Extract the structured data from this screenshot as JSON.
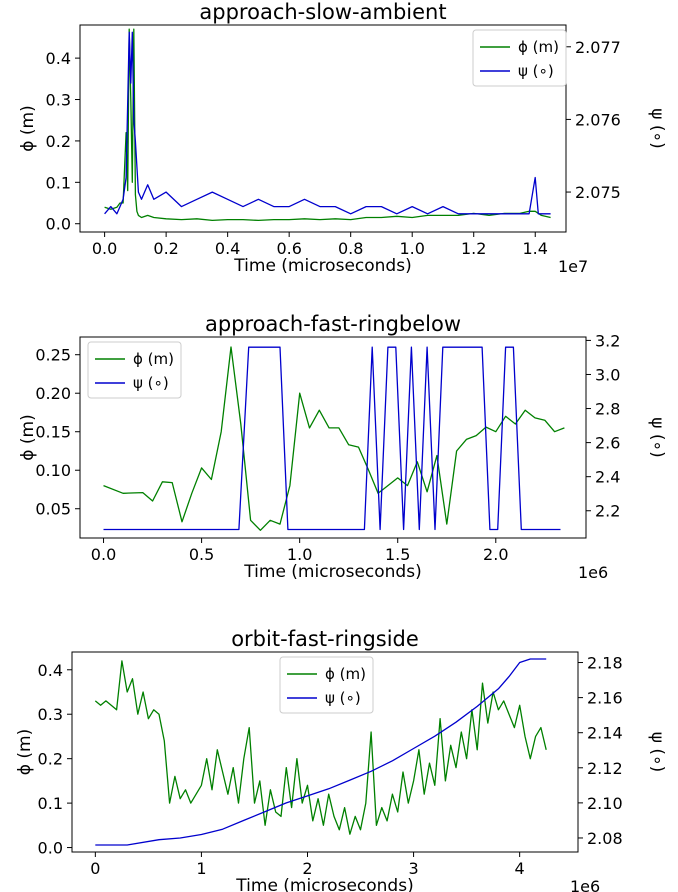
{
  "colors": {
    "phi": "#008000",
    "psi": "#0000cd"
  },
  "chart_data": [
    {
      "type": "line",
      "title": "approach-slow-ambient",
      "xlabel": "Time (microseconds)",
      "ylabel": "ϕ (m)",
      "y2label": "ψ (∘)",
      "x_offset_text": "1e7",
      "xlim": [
        -0.08,
        1.5
      ],
      "ylim": [
        -0.02,
        0.48
      ],
      "y2lim": [
        2.07445,
        2.0773
      ],
      "x_ticks": [
        0.0,
        0.2,
        0.4,
        0.6,
        0.8,
        1.0,
        1.2,
        1.4
      ],
      "x_ticklabels": [
        "0.0",
        "0.2",
        "0.4",
        "0.6",
        "0.8",
        "1.0",
        "1.2",
        "1.4"
      ],
      "y_ticks": [
        0.0,
        0.1,
        0.2,
        0.3,
        0.4
      ],
      "y_ticklabels": [
        "0.0",
        "0.1",
        "0.2",
        "0.3",
        "0.4"
      ],
      "y2_ticks": [
        2.075,
        2.076,
        2.077
      ],
      "y2_ticklabels": [
        "2.075",
        "2.076",
        "2.077"
      ],
      "legend": [
        "ϕ (m)",
        "ψ (∘)"
      ],
      "legend_loc": "upper-right",
      "series": [
        {
          "name": "ϕ (m)",
          "axis": "left",
          "x": [
            0.0,
            0.02,
            0.04,
            0.05,
            0.06,
            0.07,
            0.075,
            0.08,
            0.085,
            0.09,
            0.095,
            0.1,
            0.105,
            0.11,
            0.12,
            0.14,
            0.16,
            0.2,
            0.25,
            0.3,
            0.35,
            0.4,
            0.45,
            0.5,
            0.55,
            0.6,
            0.65,
            0.7,
            0.75,
            0.8,
            0.85,
            0.9,
            0.95,
            1.0,
            1.05,
            1.1,
            1.15,
            1.2,
            1.25,
            1.3,
            1.35,
            1.38,
            1.4,
            1.42,
            1.45
          ],
          "y": [
            0.04,
            0.035,
            0.04,
            0.05,
            0.05,
            0.22,
            0.08,
            0.47,
            0.3,
            0.1,
            0.47,
            0.07,
            0.03,
            0.02,
            0.015,
            0.02,
            0.015,
            0.012,
            0.01,
            0.012,
            0.008,
            0.01,
            0.01,
            0.008,
            0.01,
            0.01,
            0.012,
            0.01,
            0.012,
            0.01,
            0.015,
            0.015,
            0.018,
            0.015,
            0.02,
            0.02,
            0.02,
            0.025,
            0.02,
            0.025,
            0.025,
            0.03,
            0.03,
            0.02,
            0.015
          ]
        },
        {
          "name": "ψ (∘)",
          "axis": "right",
          "x": [
            0.0,
            0.02,
            0.04,
            0.05,
            0.06,
            0.07,
            0.08,
            0.085,
            0.09,
            0.095,
            0.1,
            0.11,
            0.12,
            0.14,
            0.16,
            0.2,
            0.25,
            0.3,
            0.35,
            0.4,
            0.45,
            0.5,
            0.55,
            0.6,
            0.65,
            0.7,
            0.75,
            0.8,
            0.85,
            0.9,
            0.95,
            1.0,
            1.05,
            1.1,
            1.15,
            1.2,
            1.25,
            1.3,
            1.35,
            1.38,
            1.4,
            1.41,
            1.42,
            1.45
          ],
          "y": [
            2.0747,
            2.0748,
            2.0747,
            2.0748,
            2.0749,
            2.0752,
            2.0772,
            2.0765,
            2.0772,
            2.076,
            2.0757,
            2.075,
            2.0749,
            2.0751,
            2.0749,
            2.075,
            2.0748,
            2.0749,
            2.075,
            2.0749,
            2.0748,
            2.0749,
            2.0748,
            2.0748,
            2.0749,
            2.0748,
            2.0748,
            2.0747,
            2.0748,
            2.0748,
            2.0747,
            2.0748,
            2.0747,
            2.0748,
            2.0747,
            2.0747,
            2.0747,
            2.0747,
            2.0747,
            2.0747,
            2.0752,
            2.0747,
            2.0747,
            2.0747
          ]
        }
      ]
    },
    {
      "type": "line",
      "title": "approach-fast-ringbelow",
      "xlabel": "Time (microseconds)",
      "ylabel": "ϕ (m)",
      "y2label": "ψ (∘)",
      "x_offset_text": "1e6",
      "xlim": [
        -0.12,
        2.46
      ],
      "ylim": [
        0.012,
        0.273
      ],
      "y2lim": [
        2.04,
        3.22
      ],
      "x_ticks": [
        0.0,
        0.5,
        1.0,
        1.5,
        2.0
      ],
      "x_ticklabels": [
        "0.0",
        "0.5",
        "1.0",
        "1.5",
        "2.0"
      ],
      "y_ticks": [
        0.05,
        0.1,
        0.15,
        0.2,
        0.25
      ],
      "y_ticklabels": [
        "0.05",
        "0.10",
        "0.15",
        "0.20",
        "0.25"
      ],
      "y2_ticks": [
        2.2,
        2.4,
        2.6,
        2.8,
        3.0,
        3.2
      ],
      "y2_ticklabels": [
        "2.2",
        "2.4",
        "2.6",
        "2.8",
        "3.0",
        "3.2"
      ],
      "legend": [
        "ϕ (m)",
        "ψ (∘)"
      ],
      "legend_loc": "upper-left",
      "series": [
        {
          "name": "ϕ (m)",
          "axis": "left",
          "x": [
            0.0,
            0.1,
            0.2,
            0.25,
            0.3,
            0.35,
            0.4,
            0.45,
            0.5,
            0.55,
            0.6,
            0.65,
            0.7,
            0.75,
            0.8,
            0.85,
            0.9,
            0.95,
            1.0,
            1.05,
            1.1,
            1.15,
            1.2,
            1.25,
            1.3,
            1.35,
            1.4,
            1.45,
            1.5,
            1.55,
            1.6,
            1.65,
            1.7,
            1.75,
            1.8,
            1.85,
            1.9,
            1.95,
            2.0,
            2.05,
            2.1,
            2.15,
            2.2,
            2.25,
            2.3,
            2.35
          ],
          "y": [
            0.08,
            0.07,
            0.071,
            0.06,
            0.085,
            0.084,
            0.033,
            0.07,
            0.103,
            0.088,
            0.15,
            0.26,
            0.16,
            0.035,
            0.022,
            0.035,
            0.03,
            0.08,
            0.2,
            0.155,
            0.178,
            0.155,
            0.155,
            0.133,
            0.13,
            0.101,
            0.07,
            0.08,
            0.09,
            0.08,
            0.111,
            0.072,
            0.119,
            0.03,
            0.125,
            0.14,
            0.145,
            0.156,
            0.15,
            0.17,
            0.16,
            0.178,
            0.168,
            0.165,
            0.15,
            0.155
          ]
        },
        {
          "name": "ψ (∘)",
          "axis": "right",
          "x": [
            0.0,
            0.69,
            0.74,
            0.9,
            0.94,
            1.33,
            1.37,
            1.41,
            1.45,
            1.49,
            1.53,
            1.57,
            1.61,
            1.65,
            1.69,
            1.73,
            1.77,
            1.85,
            1.93,
            1.97,
            2.01,
            2.05,
            2.09,
            2.13,
            2.17,
            2.21,
            2.33
          ],
          "y": [
            2.09,
            2.09,
            3.16,
            3.16,
            2.09,
            2.09,
            3.16,
            2.09,
            3.16,
            3.16,
            2.09,
            3.16,
            2.09,
            3.16,
            2.09,
            3.16,
            3.16,
            3.16,
            3.16,
            2.09,
            2.09,
            3.16,
            3.16,
            2.09,
            2.09,
            2.09,
            2.09
          ]
        }
      ]
    },
    {
      "type": "line",
      "title": "orbit-fast-ringside",
      "xlabel": "Time (microseconds)",
      "ylabel": "ϕ (m)",
      "y2label": "ψ (∘)",
      "x_offset_text": "1e6",
      "xlim": [
        -0.22,
        4.55
      ],
      "ylim": [
        -0.01,
        0.44
      ],
      "y2lim": [
        2.072,
        2.186
      ],
      "x_ticks": [
        0,
        1,
        2,
        3,
        4
      ],
      "x_ticklabels": [
        "0",
        "1",
        "2",
        "3",
        "4"
      ],
      "y_ticks": [
        0.0,
        0.1,
        0.2,
        0.3,
        0.4
      ],
      "y_ticklabels": [
        "0.0",
        "0.1",
        "0.2",
        "0.3",
        "0.4"
      ],
      "y2_ticks": [
        2.08,
        2.1,
        2.12,
        2.14,
        2.16,
        2.18
      ],
      "y2_ticklabels": [
        "2.08",
        "2.10",
        "2.12",
        "2.14",
        "2.16",
        "2.18"
      ],
      "legend": [
        "ϕ (m)",
        "ψ (∘)"
      ],
      "legend_loc": "upper-center",
      "series": [
        {
          "name": "ϕ (m)",
          "axis": "left",
          "x": [
            0.0,
            0.05,
            0.1,
            0.15,
            0.2,
            0.25,
            0.3,
            0.35,
            0.4,
            0.45,
            0.5,
            0.55,
            0.6,
            0.65,
            0.7,
            0.75,
            0.8,
            0.85,
            0.9,
            0.95,
            1.0,
            1.05,
            1.1,
            1.15,
            1.2,
            1.25,
            1.3,
            1.35,
            1.4,
            1.45,
            1.5,
            1.55,
            1.6,
            1.65,
            1.7,
            1.75,
            1.8,
            1.85,
            1.9,
            1.95,
            2.0,
            2.05,
            2.1,
            2.15,
            2.2,
            2.25,
            2.3,
            2.35,
            2.4,
            2.45,
            2.5,
            2.55,
            2.6,
            2.65,
            2.7,
            2.75,
            2.8,
            2.85,
            2.9,
            2.95,
            3.0,
            3.05,
            3.1,
            3.15,
            3.2,
            3.25,
            3.3,
            3.35,
            3.4,
            3.45,
            3.5,
            3.55,
            3.6,
            3.65,
            3.7,
            3.75,
            3.8,
            3.85,
            3.9,
            3.95,
            4.0,
            4.05,
            4.1,
            4.15,
            4.2,
            4.25
          ],
          "y": [
            0.33,
            0.32,
            0.33,
            0.32,
            0.31,
            0.42,
            0.35,
            0.38,
            0.3,
            0.35,
            0.29,
            0.31,
            0.3,
            0.24,
            0.1,
            0.16,
            0.11,
            0.13,
            0.1,
            0.12,
            0.14,
            0.2,
            0.13,
            0.22,
            0.17,
            0.12,
            0.18,
            0.1,
            0.2,
            0.27,
            0.1,
            0.15,
            0.05,
            0.13,
            0.08,
            0.07,
            0.18,
            0.09,
            0.2,
            0.1,
            0.14,
            0.06,
            0.11,
            0.05,
            0.12,
            0.07,
            0.04,
            0.09,
            0.03,
            0.07,
            0.04,
            0.1,
            0.26,
            0.05,
            0.09,
            0.06,
            0.12,
            0.08,
            0.17,
            0.1,
            0.15,
            0.22,
            0.12,
            0.19,
            0.14,
            0.29,
            0.15,
            0.23,
            0.18,
            0.26,
            0.2,
            0.31,
            0.22,
            0.37,
            0.28,
            0.35,
            0.31,
            0.33,
            0.3,
            0.27,
            0.32,
            0.25,
            0.2,
            0.25,
            0.27,
            0.22
          ]
        },
        {
          "name": "ψ (∘)",
          "axis": "right",
          "x": [
            0.0,
            0.3,
            0.6,
            0.8,
            1.0,
            1.2,
            1.4,
            1.6,
            1.8,
            2.0,
            2.2,
            2.4,
            2.6,
            2.8,
            3.0,
            3.2,
            3.4,
            3.6,
            3.8,
            3.9,
            4.0,
            4.1,
            4.25
          ],
          "y": [
            2.076,
            2.076,
            2.079,
            2.08,
            2.082,
            2.085,
            2.09,
            2.095,
            2.1,
            2.104,
            2.108,
            2.113,
            2.118,
            2.124,
            2.131,
            2.138,
            2.146,
            2.155,
            2.165,
            2.172,
            2.18,
            2.182,
            2.182
          ]
        }
      ]
    }
  ]
}
